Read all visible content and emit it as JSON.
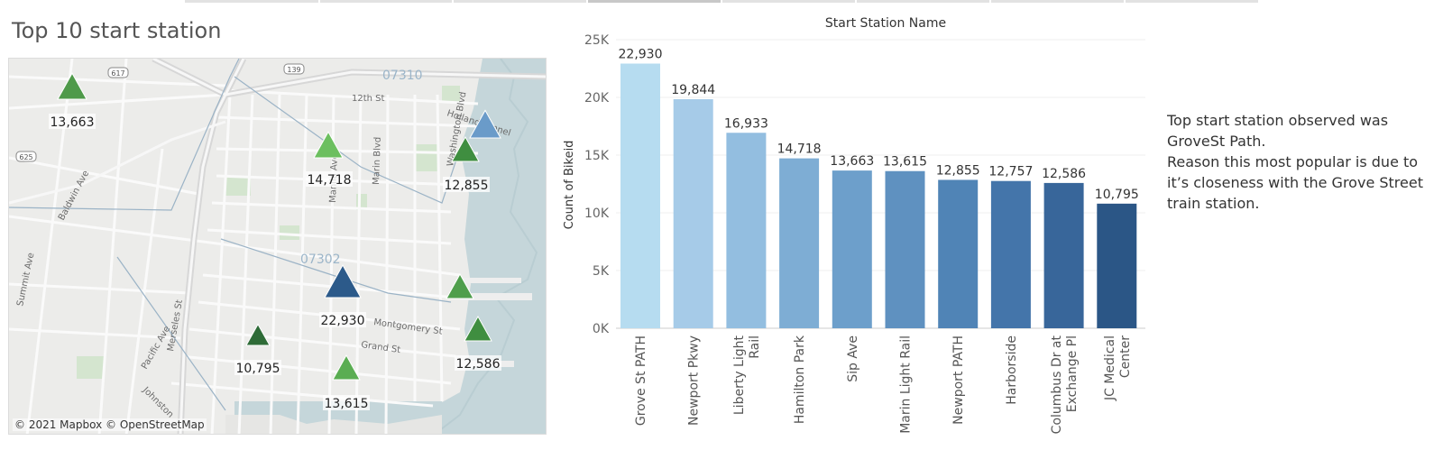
{
  "dashboard": {
    "title": "Top 10 start station"
  },
  "map": {
    "attribution": "© 2021 Mapbox © OpenStreetMap",
    "zip_labels": [
      "07310",
      "07302"
    ],
    "route_shields": [
      "617",
      "139",
      "625"
    ],
    "street_labels": [
      "12th St",
      "Holland Tunnel",
      "Washington Blvd",
      "Manila Ave",
      "Marin Blvd",
      "Baldwin Ave",
      "Summit Ave",
      "Merseles St",
      "Pacific Ave",
      "Montgomery St",
      "Grand St",
      "Johnston"
    ],
    "stations": [
      {
        "label": "13,663",
        "value": 13663,
        "color": "#4f9a4a"
      },
      {
        "label": "14,718",
        "value": 14718,
        "color": "#6cbf5f"
      },
      {
        "label": "12,855",
        "value": 12855,
        "color": "#3f8e40"
      },
      {
        "label": "",
        "value": null,
        "color": "#6a9bc9"
      },
      {
        "label": "22,930",
        "value": 22930,
        "color": "#2c5a8a"
      },
      {
        "label": "",
        "value": null,
        "color": "#4f9e4c"
      },
      {
        "label": "12,586",
        "value": 12586,
        "color": "#3f8e40"
      },
      {
        "label": "10,795",
        "value": 10795,
        "color": "#2e6b37"
      },
      {
        "label": "13,615",
        "value": 13615,
        "color": "#5aad52"
      }
    ]
  },
  "chart_data": {
    "type": "bar",
    "title": "Start Station Name",
    "xlabel": "",
    "ylabel": "Count of Bikeid",
    "ylim": [
      0,
      25000
    ],
    "yticks": [
      "0K",
      "5K",
      "10K",
      "15K",
      "20K",
      "25K"
    ],
    "grid": true,
    "categories": [
      "Grove St PATH",
      "Newport Pkwy",
      "Liberty Light Rail",
      "Hamilton Park",
      "Sip Ave",
      "Marin Light Rail",
      "Newport PATH",
      "Harborside",
      "Columbus Dr at Exchange Pl",
      "JC Medical Center"
    ],
    "category_lines": [
      [
        "Grove St PATH"
      ],
      [
        "Newport Pkwy"
      ],
      [
        "Liberty Light",
        "Rail"
      ],
      [
        "Hamilton Park"
      ],
      [
        "Sip Ave"
      ],
      [
        "Marin Light Rail"
      ],
      [
        "Newport PATH"
      ],
      [
        "Harborside"
      ],
      [
        "Columbus Dr at",
        "Exchange Pl"
      ],
      [
        "JC Medical",
        "Center"
      ]
    ],
    "values": [
      22930,
      19844,
      16933,
      14718,
      13663,
      13615,
      12855,
      12757,
      12586,
      10795
    ],
    "data_labels": [
      "22,930",
      "19,844",
      "16,933",
      "14,718",
      "13,663",
      "13,615",
      "12,855",
      "12,757",
      "12,586",
      "10,795"
    ],
    "colors": [
      "#b6dcf0",
      "#a6cbe8",
      "#93bee0",
      "#7eadd4",
      "#6d9fcb",
      "#5f91c0",
      "#5084b6",
      "#4475aa",
      "#38669a",
      "#2b5686"
    ]
  },
  "annotation": {
    "lines": [
      "Top start station observed was",
      "GroveSt Path.",
      "Reason this most popular is due to",
      "it’s closeness with the Grove Street",
      "train station."
    ]
  }
}
